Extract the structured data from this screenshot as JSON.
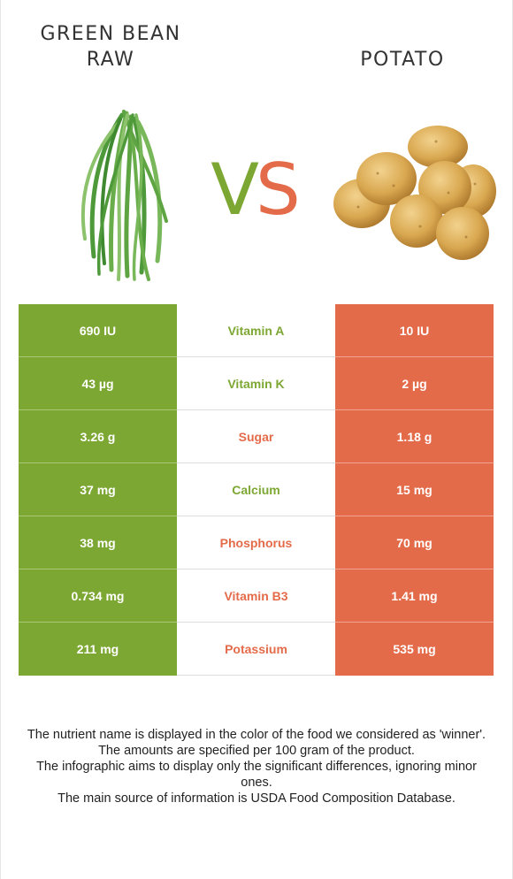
{
  "left_food": {
    "name_line1": "Green bean",
    "name_line2": "raw",
    "color": "#7da733",
    "icon": "green-beans-icon"
  },
  "right_food": {
    "name": "Potato",
    "color": "#e46b4a",
    "icon": "potato-icon"
  },
  "vs": {
    "v": "V",
    "s": "S"
  },
  "nutrients": [
    {
      "name": "Vitamin A",
      "left": "690 IU",
      "right": "10 IU",
      "winner": "left"
    },
    {
      "name": "Vitamin K",
      "left": "43 µg",
      "right": "2 µg",
      "winner": "left"
    },
    {
      "name": "Sugar",
      "left": "3.26 g",
      "right": "1.18 g",
      "winner": "right"
    },
    {
      "name": "Calcium",
      "left": "37 mg",
      "right": "15 mg",
      "winner": "left"
    },
    {
      "name": "Phosphorus",
      "left": "38 mg",
      "right": "70 mg",
      "winner": "right"
    },
    {
      "name": "Vitamin B3",
      "left": "0.734 mg",
      "right": "1.41 mg",
      "winner": "right"
    },
    {
      "name": "Potassium",
      "left": "211 mg",
      "right": "535 mg",
      "winner": "right"
    }
  ],
  "notes": [
    "The nutrient name is displayed in the color of the food we considered as 'winner'.",
    "The amounts are specified per 100 gram of the product.",
    "The infographic aims to display only the significant differences, ignoring minor ones.",
    "The main source of information is USDA Food Composition Database."
  ]
}
